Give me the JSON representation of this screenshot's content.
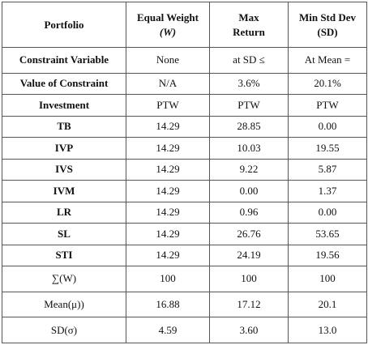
{
  "header": {
    "portfolio": "Portfolio",
    "col1_line1": "Equal Weight",
    "col1_line2": "(W)",
    "col2_line1": "Max",
    "col2_line2": "Return",
    "col3_line1": "Min Std Dev",
    "col3_line2": "(SD)"
  },
  "constraint_variable": {
    "label": "Constraint Variable",
    "values": [
      "None",
      "at SD ≤",
      "At Mean ="
    ]
  },
  "value_of_constraint": {
    "label": "Value of Constraint",
    "values": [
      "N/A",
      "3.6%",
      "20.1%"
    ]
  },
  "investment": {
    "label": "Investment",
    "values": [
      "PTW",
      "PTW",
      "PTW"
    ]
  },
  "assets": [
    {
      "name": "TB",
      "values": [
        "14.29",
        "28.85",
        "0.00"
      ]
    },
    {
      "name": "IVP",
      "values": [
        "14.29",
        "10.03",
        "19.55"
      ]
    },
    {
      "name": "IVS",
      "values": [
        "14.29",
        "9.22",
        "5.87"
      ]
    },
    {
      "name": "IVM",
      "values": [
        "14.29",
        "0.00",
        "1.37"
      ]
    },
    {
      "name": "LR",
      "values": [
        "14.29",
        "0.96",
        "0.00"
      ]
    },
    {
      "name": "SL",
      "values": [
        "14.29",
        "26.76",
        "53.65"
      ]
    },
    {
      "name": "STI",
      "values": [
        "14.29",
        "24.19",
        "19.56"
      ]
    }
  ],
  "sum_row": {
    "label": "∑(W)",
    "values": [
      "100",
      "100",
      "100"
    ]
  },
  "mean_row": {
    "label": "Mean(μ))",
    "values": [
      "16.88",
      "17.12",
      "20.1"
    ]
  },
  "sd_row": {
    "label": "SD(σ)",
    "values": [
      "4.59",
      "3.60",
      "13.0"
    ]
  }
}
